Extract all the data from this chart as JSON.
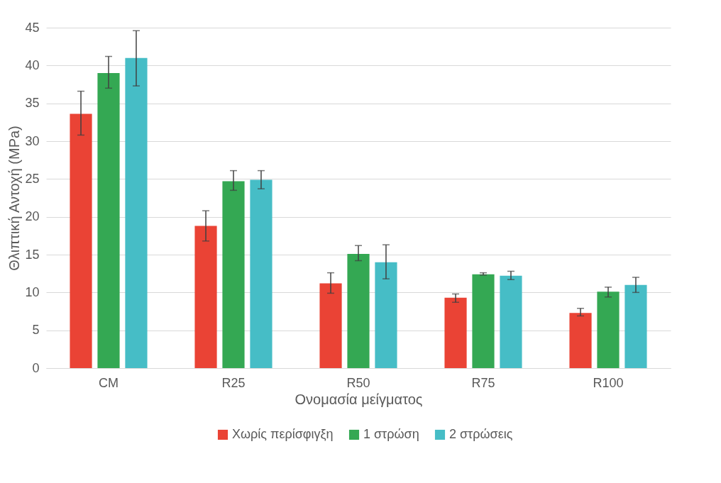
{
  "chart_data": {
    "type": "bar",
    "xlabel": "Ονομασία μείγματος",
    "ylabel": "Θλιπτική Αντοχή (MPa)",
    "categories": [
      "CM",
      "R25",
      "R50",
      "R75",
      "R100"
    ],
    "series": [
      {
        "name": "Χωρίς περίσφιγξη",
        "color": "#ea4335",
        "values": [
          33.6,
          18.8,
          11.2,
          9.3,
          7.3
        ],
        "errors": [
          [
            30.8,
            36.6
          ],
          [
            16.8,
            20.8
          ],
          [
            9.9,
            12.6
          ],
          [
            8.7,
            9.8
          ],
          [
            6.9,
            7.9
          ]
        ]
      },
      {
        "name": "1 στρώση",
        "color": "#34a853",
        "values": [
          39.0,
          24.7,
          15.1,
          12.4,
          10.1
        ],
        "errors": [
          [
            37.0,
            41.2
          ],
          [
            23.5,
            26.1
          ],
          [
            14.2,
            16.2
          ],
          [
            12.3,
            12.6
          ],
          [
            9.4,
            10.7
          ]
        ]
      },
      {
        "name": "2 στρώσεις",
        "color": "#46bdc6",
        "values": [
          41.0,
          24.9,
          14.0,
          12.2,
          11.0
        ],
        "errors": [
          [
            37.3,
            44.6
          ],
          [
            23.7,
            26.1
          ],
          [
            11.8,
            16.3
          ],
          [
            11.7,
            12.8
          ],
          [
            10.0,
            12.0
          ]
        ]
      }
    ],
    "ylim": [
      0,
      45
    ],
    "yticks": [
      0,
      5,
      10,
      15,
      20,
      25,
      30,
      35,
      40,
      45
    ],
    "grid": "y",
    "legend": "bottom"
  }
}
